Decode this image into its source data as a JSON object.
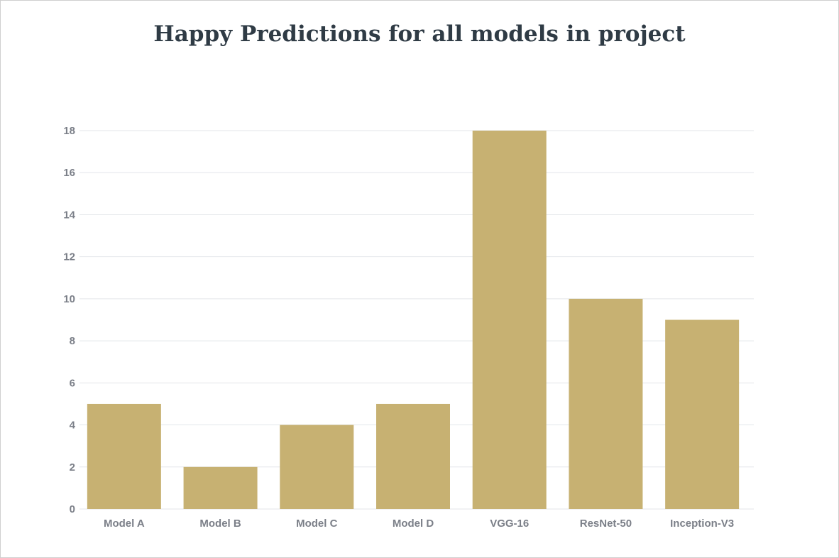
{
  "chart_data": {
    "type": "bar",
    "title": "Happy Predictions for all models in project",
    "categories": [
      "Model A",
      "Model B",
      "Model C",
      "Model D",
      "VGG-16",
      "ResNet-50",
      "Inception-V3"
    ],
    "values": [
      5,
      2,
      4,
      5,
      18,
      10,
      9
    ],
    "ylim": [
      0,
      18
    ],
    "yticks": [
      0,
      2,
      4,
      6,
      8,
      10,
      12,
      14,
      16,
      18
    ],
    "xlabel": "",
    "ylabel": "",
    "grid": true,
    "colors": {
      "bar": "#c7b172",
      "grid": "#e3e6ea",
      "tick_text": "#7b7f88",
      "title": "#2f3b45"
    }
  }
}
